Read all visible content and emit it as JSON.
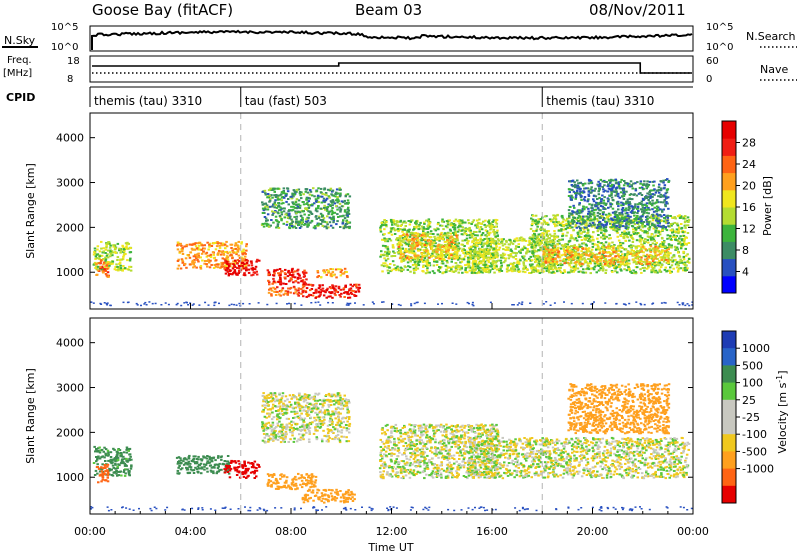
{
  "header": {
    "title": "Goose Bay (fitACF)",
    "beam": "Beam 03",
    "date": "08/Nov/2011"
  },
  "top_panels": {
    "nsky_label": "N.Sky",
    "nsky_ticks": [
      "10^5",
      "10^0"
    ],
    "nsearch_label": "N.Search",
    "nsearch_ticks": [
      "10^5",
      "10^0"
    ],
    "freq_label": "Freq.",
    "freq_unit": "[MHz]",
    "freq_ticks": [
      "18",
      "8"
    ],
    "nave_label": "Nave",
    "nave_ticks": [
      "60",
      "0"
    ],
    "cpid_label": "CPID"
  },
  "cpid_segments": [
    {
      "label": "themis (tau) 3310",
      "start_hour": 0
    },
    {
      "label": "tau (fast) 503",
      "start_hour": 6
    },
    {
      "label": "themis (tau) 3310",
      "start_hour": 18
    }
  ],
  "chart_data": [
    {
      "type": "heatmap",
      "name": "Power panel",
      "xlabel": "Time UT",
      "ylabel": "Slant Range [km]",
      "xlim_hours": [
        0,
        24
      ],
      "ylim_km": [
        180,
        4550
      ],
      "x_ticks": [
        "00:00",
        "04:00",
        "08:00",
        "12:00",
        "16:00",
        "20:00",
        "00:00"
      ],
      "y_ticks": [
        "1000",
        "2000",
        "3000",
        "4000"
      ],
      "colorbar": {
        "label": "Power [dB]",
        "ticks": [
          "4",
          "8",
          "12",
          "16",
          "20",
          "24",
          "28"
        ],
        "range": [
          0,
          30
        ],
        "colors": [
          "#0000ff",
          "#2850c0",
          "#3c8c64",
          "#3cb43c",
          "#b4dc32",
          "#f0e61e",
          "#ffa01e",
          "#ff6414",
          "#f01e14",
          "#e60000"
        ]
      },
      "echo_regions": [
        {
          "t0": 0.1,
          "t1": 1.6,
          "r0": 1050,
          "r1": 1700,
          "value_db": 14
        },
        {
          "t0": 0.2,
          "t1": 0.7,
          "r0": 900,
          "r1": 1300,
          "value_db": 22
        },
        {
          "t0": 3.4,
          "t1": 6.2,
          "r0": 1100,
          "r1": 1700,
          "value_db": 20
        },
        {
          "t0": 5.3,
          "t1": 6.7,
          "r0": 950,
          "r1": 1300,
          "value_db": 28
        },
        {
          "t0": 7.0,
          "t1": 8.6,
          "r0": 750,
          "r1": 1100,
          "value_db": 26
        },
        {
          "t0": 7.0,
          "t1": 8.4,
          "r0": 500,
          "r1": 700,
          "value_db": 22
        },
        {
          "t0": 8.4,
          "t1": 10.7,
          "r0": 450,
          "r1": 750,
          "value_db": 26
        },
        {
          "t0": 9.0,
          "t1": 10.2,
          "r0": 900,
          "r1": 1100,
          "value_db": 20
        },
        {
          "t0": 6.8,
          "t1": 10.3,
          "r0": 2000,
          "r1": 2900,
          "value_db": 9
        },
        {
          "t0": 11.5,
          "t1": 16.2,
          "r0": 1000,
          "r1": 2200,
          "value_db": 13
        },
        {
          "t0": 12.2,
          "t1": 14.6,
          "r0": 1300,
          "r1": 1900,
          "value_db": 18
        },
        {
          "t0": 15.0,
          "t1": 18.5,
          "r0": 1000,
          "r1": 1800,
          "value_db": 14
        },
        {
          "t0": 17.5,
          "t1": 23.8,
          "r0": 1000,
          "r1": 2300,
          "value_db": 13
        },
        {
          "t0": 18.0,
          "t1": 23.0,
          "r0": 1200,
          "r1": 1600,
          "value_db": 18
        },
        {
          "t0": 19.0,
          "t1": 23.0,
          "r0": 2000,
          "r1": 3100,
          "value_db": 7
        }
      ]
    },
    {
      "type": "heatmap",
      "name": "Velocity panel",
      "xlabel": "Time UT",
      "ylabel": "Slant Range [km]",
      "xlim_hours": [
        0,
        24
      ],
      "ylim_km": [
        180,
        4550
      ],
      "x_ticks": [
        "00:00",
        "04:00",
        "08:00",
        "12:00",
        "16:00",
        "20:00",
        "00:00"
      ],
      "y_ticks": [
        "1000",
        "2000",
        "3000",
        "4000"
      ],
      "colorbar": {
        "label": "Velocity [m s",
        "label_sup": "-1",
        "label_end": "]",
        "ticks": [
          "1000",
          "500",
          "100",
          "25",
          "-25",
          "-100",
          "-500",
          "-1000"
        ],
        "colors": [
          "#1e3cb4",
          "#2864c8",
          "#3c8c50",
          "#5ac83c",
          "#c8c8c0",
          "#c8c8c0",
          "#f0c81e",
          "#ffa01e",
          "#ff6414",
          "#e60000"
        ]
      },
      "echo_regions": [
        {
          "t0": 0.1,
          "t1": 1.6,
          "r0": 1050,
          "r1": 1700,
          "value_ms": 150
        },
        {
          "t0": 0.2,
          "t1": 0.7,
          "r0": 900,
          "r1": 1300,
          "value_ms": -600
        },
        {
          "t0": 3.4,
          "t1": 5.5,
          "r0": 1100,
          "r1": 1500,
          "value_ms": 200
        },
        {
          "t0": 5.3,
          "t1": 6.7,
          "r0": 1000,
          "r1": 1400,
          "value_ms": -800
        },
        {
          "t0": 7.0,
          "t1": 9.0,
          "r0": 750,
          "r1": 1100,
          "value_ms": -200
        },
        {
          "t0": 8.4,
          "t1": 10.5,
          "r0": 450,
          "r1": 750,
          "value_ms": -150
        },
        {
          "t0": 6.8,
          "t1": 10.3,
          "r0": 1800,
          "r1": 2900,
          "value_ms": 0
        },
        {
          "t0": 11.5,
          "t1": 16.2,
          "r0": 1000,
          "r1": 2200,
          "value_ms": 0
        },
        {
          "t0": 15.0,
          "t1": 23.8,
          "r0": 1000,
          "r1": 1900,
          "value_ms": 0
        },
        {
          "t0": 19.0,
          "t1": 23.0,
          "r0": 2000,
          "r1": 3100,
          "value_ms": -150
        }
      ]
    }
  ]
}
